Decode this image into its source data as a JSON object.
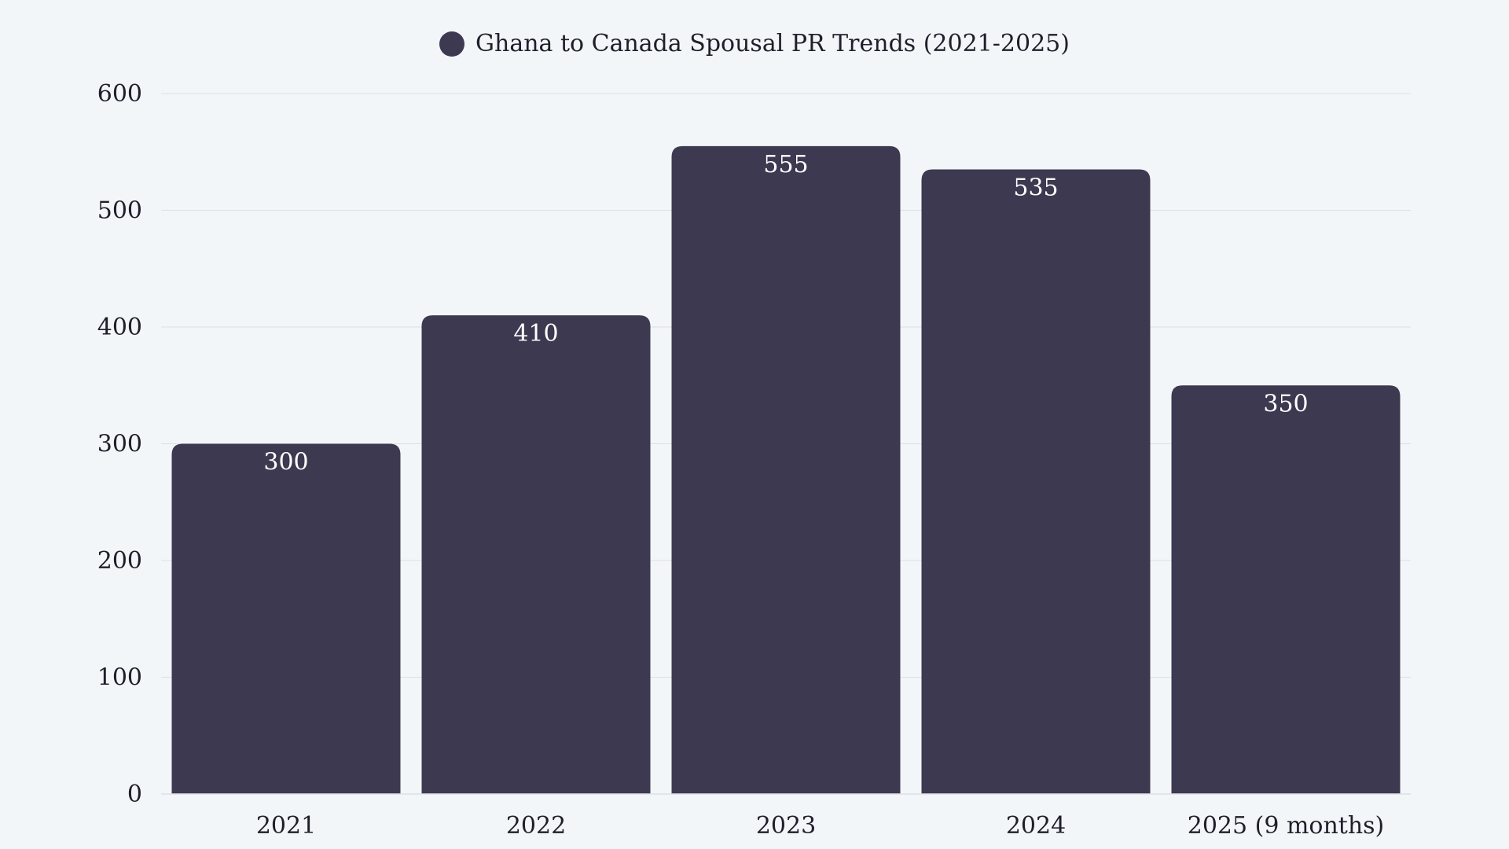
{
  "chart_data": {
    "type": "bar",
    "title": "",
    "legend": [
      {
        "label": "Ghana to Canada Spousal PR Trends (2021-2025)",
        "color": "#3c3950"
      }
    ],
    "legend_position": "top",
    "categories": [
      "2021",
      "2022",
      "2023",
      "2024",
      "2025 (9 months)"
    ],
    "series": [
      {
        "name": "Ghana to Canada Spousal PR Trends (2021-2025)",
        "values": [
          300,
          410,
          555,
          535,
          350
        ]
      }
    ],
    "data_labels": [
      "300",
      "410",
      "555",
      "535",
      "350"
    ],
    "xlabel": "",
    "ylabel": "",
    "ylim": [
      0,
      600
    ],
    "yticks": [
      "0",
      "100",
      "200",
      "300",
      "400",
      "500",
      "600"
    ],
    "grid": true,
    "colors": {
      "bar": "#3c3950",
      "grid": "#dcdfe4",
      "background": "#f3f6f9"
    }
  }
}
